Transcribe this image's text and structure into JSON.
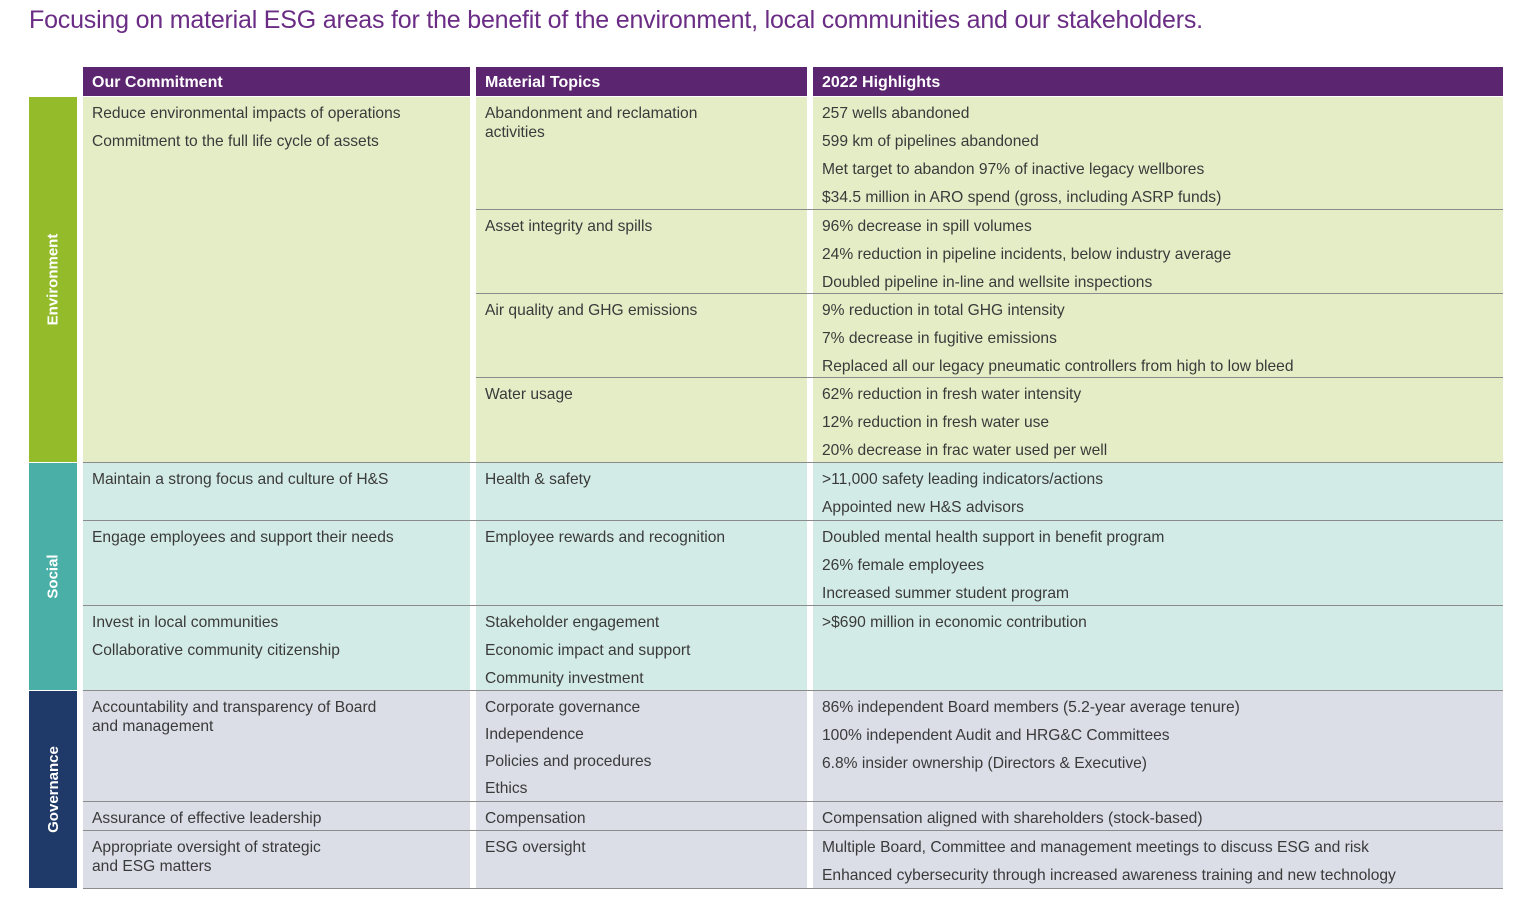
{
  "page_title": "Focusing on material ESG areas for the benefit of the environment, local communities and our stakeholders.",
  "headers": {
    "commitment": "Our Commitment",
    "topics": "Material Topics",
    "highlights": "2022 Highlights"
  },
  "sections": {
    "environment": "Environment",
    "social": "Social",
    "governance": "Governance"
  },
  "environment": {
    "commitment": [
      "Reduce environmental impacts of operations",
      "Commitment to the full life cycle of assets"
    ],
    "groups": [
      {
        "topics": [
          "Abandonment and reclamation",
          "activities"
        ],
        "highlights": [
          "257 wells abandoned",
          "599 km of pipelines abandoned",
          "Met target to abandon 97% of inactive legacy wellbores",
          "$34.5 million in ARO spend (gross, including ASRP funds)"
        ]
      },
      {
        "topics": [
          "Asset integrity and spills"
        ],
        "highlights": [
          "96% decrease in spill volumes",
          "24% reduction in pipeline incidents, below industry average",
          "Doubled pipeline in-line and wellsite inspections"
        ]
      },
      {
        "topics": [
          "Air quality and GHG emissions"
        ],
        "highlights": [
          "9% reduction in total GHG intensity",
          "7% decrease in fugitive emissions",
          "Replaced all our legacy pneumatic controllers from high to low bleed"
        ]
      },
      {
        "topics": [
          "Water usage"
        ],
        "highlights": [
          "62% reduction in fresh water intensity",
          "12% reduction in fresh water use",
          "20% decrease in frac water used per well"
        ]
      }
    ]
  },
  "social": {
    "rows": [
      {
        "commitment": [
          "Maintain a strong focus and culture of H&S"
        ],
        "topics": [
          "Health & safety"
        ],
        "highlights": [
          ">11,000 safety leading indicators/actions",
          "Appointed new H&S advisors"
        ]
      },
      {
        "commitment": [
          "Engage employees and support their needs"
        ],
        "topics": [
          "Employee rewards and recognition"
        ],
        "highlights": [
          "Doubled mental health support in benefit program",
          "26% female employees",
          "Increased summer student program"
        ]
      },
      {
        "commitment": [
          "Invest in local communities",
          "Collaborative community citizenship"
        ],
        "topics": [
          "Stakeholder engagement",
          "Economic impact and support",
          "Community investment"
        ],
        "highlights": [
          ">$690 million in economic contribution"
        ]
      }
    ]
  },
  "governance": {
    "rows": [
      {
        "commitment": [
          "Accountability and transparency of Board",
          "and management"
        ],
        "topics": [
          "Corporate governance",
          "Independence",
          "Policies and procedures",
          "Ethics"
        ],
        "highlights": [
          "86% independent Board members (5.2-year average tenure)",
          "100% independent Audit and HRG&C Committees",
          "6.8% insider ownership (Directors & Executive)"
        ]
      },
      {
        "commitment": [
          "Assurance of effective leadership"
        ],
        "topics": [
          "Compensation"
        ],
        "highlights": [
          "Compensation aligned with shareholders (stock-based)"
        ]
      },
      {
        "commitment": [
          "Appropriate oversight of strategic",
          "and ESG matters"
        ],
        "topics": [
          "ESG oversight"
        ],
        "highlights": [
          "Multiple Board, Committee and management meetings to discuss ESG and risk",
          "Enhanced cybersecurity through increased awareness training and new technology"
        ]
      }
    ]
  },
  "colors": {
    "title": "#6a2c84",
    "header_bg": "#5b2570",
    "environment_bar": "#93bb2a",
    "environment_bg": "#e5edc7",
    "social_bar": "#4aafa7",
    "social_bg": "#d3ebe6",
    "governance_bar": "#1f3a68",
    "governance_bg": "#dbdde7"
  }
}
